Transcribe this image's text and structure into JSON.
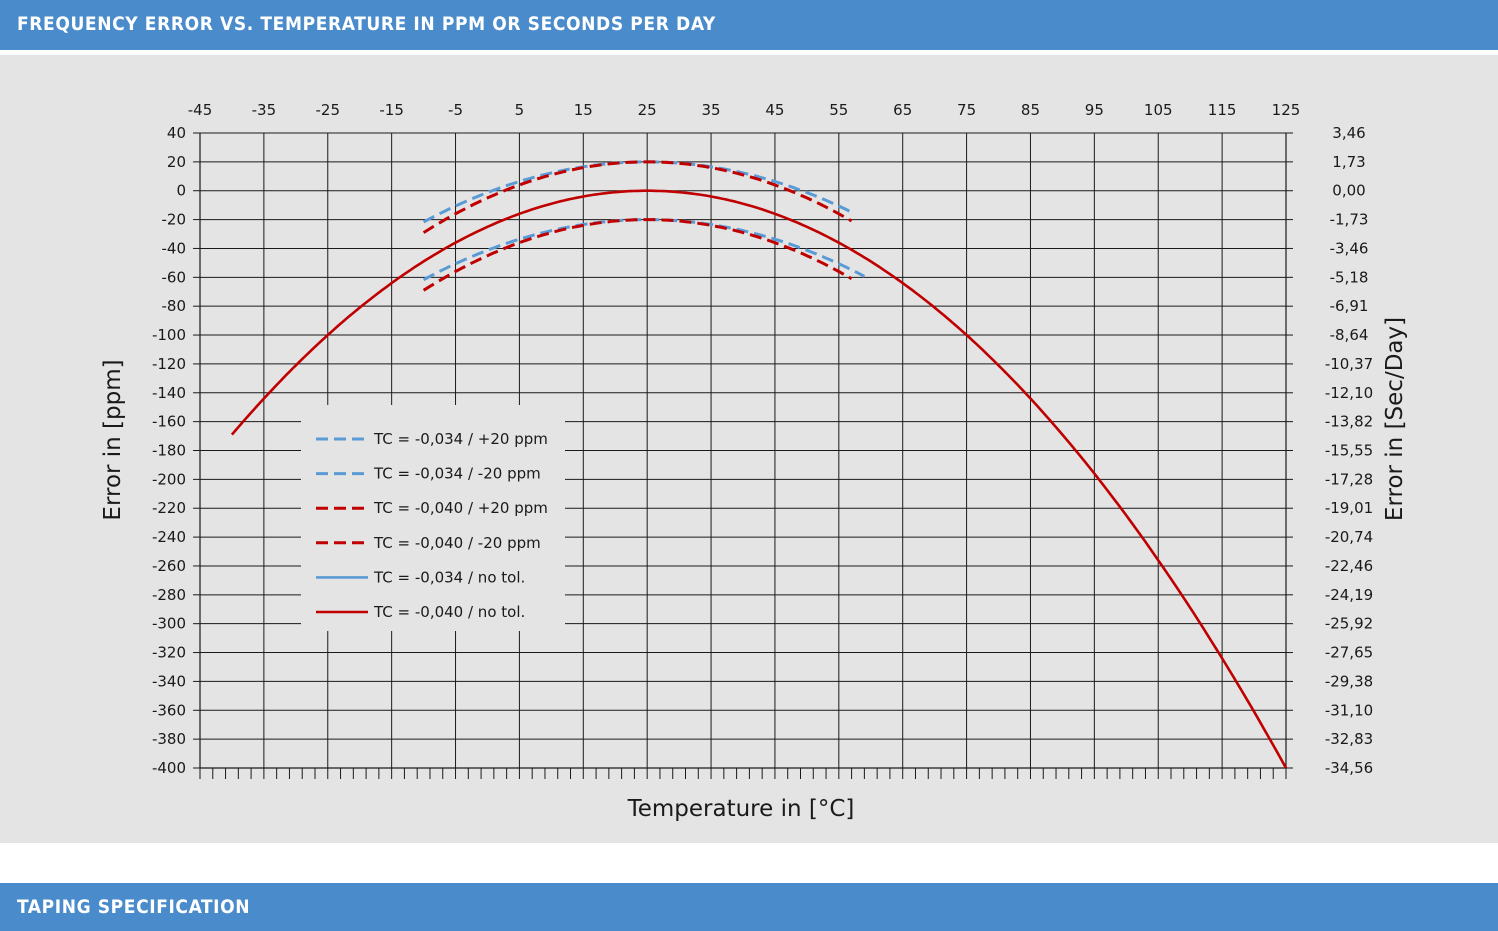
{
  "header": {
    "title": "FREQUENCY ERROR VS. TEMPERATURE IN PPM OR SECONDS PER DAY"
  },
  "footer": {
    "title": "TAPING SPECIFICATION"
  },
  "colors": {
    "bar": "#4a8ccb",
    "panel": "#e4e4e4",
    "blue": "#5b9bd5",
    "red": "#c00000"
  },
  "chart_data": {
    "type": "line",
    "title": "",
    "xlabel": "Temperature in [°C]",
    "ylabel": "Error in [ppm]",
    "y2label": "Error in [Sec/Day]",
    "xlim": [
      -45,
      125
    ],
    "ylim": [
      -400,
      40
    ],
    "grid": true,
    "legend_position": "center-left",
    "x_ticks": [
      -45,
      -35,
      -25,
      -15,
      -5,
      5,
      15,
      25,
      35,
      45,
      55,
      65,
      75,
      85,
      95,
      105,
      115,
      125
    ],
    "y_ticks": [
      40,
      20,
      0,
      -20,
      -40,
      -60,
      -80,
      -100,
      -120,
      -140,
      -160,
      -180,
      -200,
      -220,
      -240,
      -260,
      -280,
      -300,
      -320,
      -340,
      -360,
      -380,
      -400
    ],
    "y2_ticks": [
      "3,46",
      "1,73",
      "0,00",
      "-1,73",
      "-3,46",
      "-5,18",
      "-6,91",
      "-8,64",
      "-10,37",
      "-12,10",
      "-13,82",
      "-15,55",
      "-17,28",
      "-19,01",
      "-20,74",
      "-22,46",
      "-24,19",
      "-25,92",
      "-27,65",
      "-29,38",
      "-31,10",
      "-32,83",
      "-34,56"
    ],
    "series": [
      {
        "name": "TC = -0,034 / +20 ppm",
        "color": "#5b9bd5",
        "dashed": true,
        "tc": -0.034,
        "offset": 20,
        "x_range": [
          -10,
          57
        ]
      },
      {
        "name": "TC = -0,034 / -20 ppm",
        "color": "#5b9bd5",
        "dashed": true,
        "tc": -0.034,
        "offset": -20,
        "x_range": [
          -10,
          59
        ]
      },
      {
        "name": "TC = -0,040 / +20 ppm",
        "color": "#c00000",
        "dashed": true,
        "tc": -0.04,
        "offset": 20,
        "x_range": [
          -10,
          57
        ]
      },
      {
        "name": "TC = -0,040 / -20 ppm",
        "color": "#c00000",
        "dashed": true,
        "tc": -0.04,
        "offset": -20,
        "x_range": [
          -10,
          57
        ]
      },
      {
        "name": "TC = -0,034 / no tol.",
        "color": "#5b9bd5",
        "dashed": false,
        "tc": -0.034,
        "offset": 0,
        "x_range": null
      },
      {
        "name": "TC = -0,040 / no tol.",
        "color": "#c00000",
        "dashed": false,
        "tc": -0.04,
        "offset": 0,
        "x_range": [
          -40,
          125
        ]
      }
    ],
    "turnover_temperature": 25
  }
}
